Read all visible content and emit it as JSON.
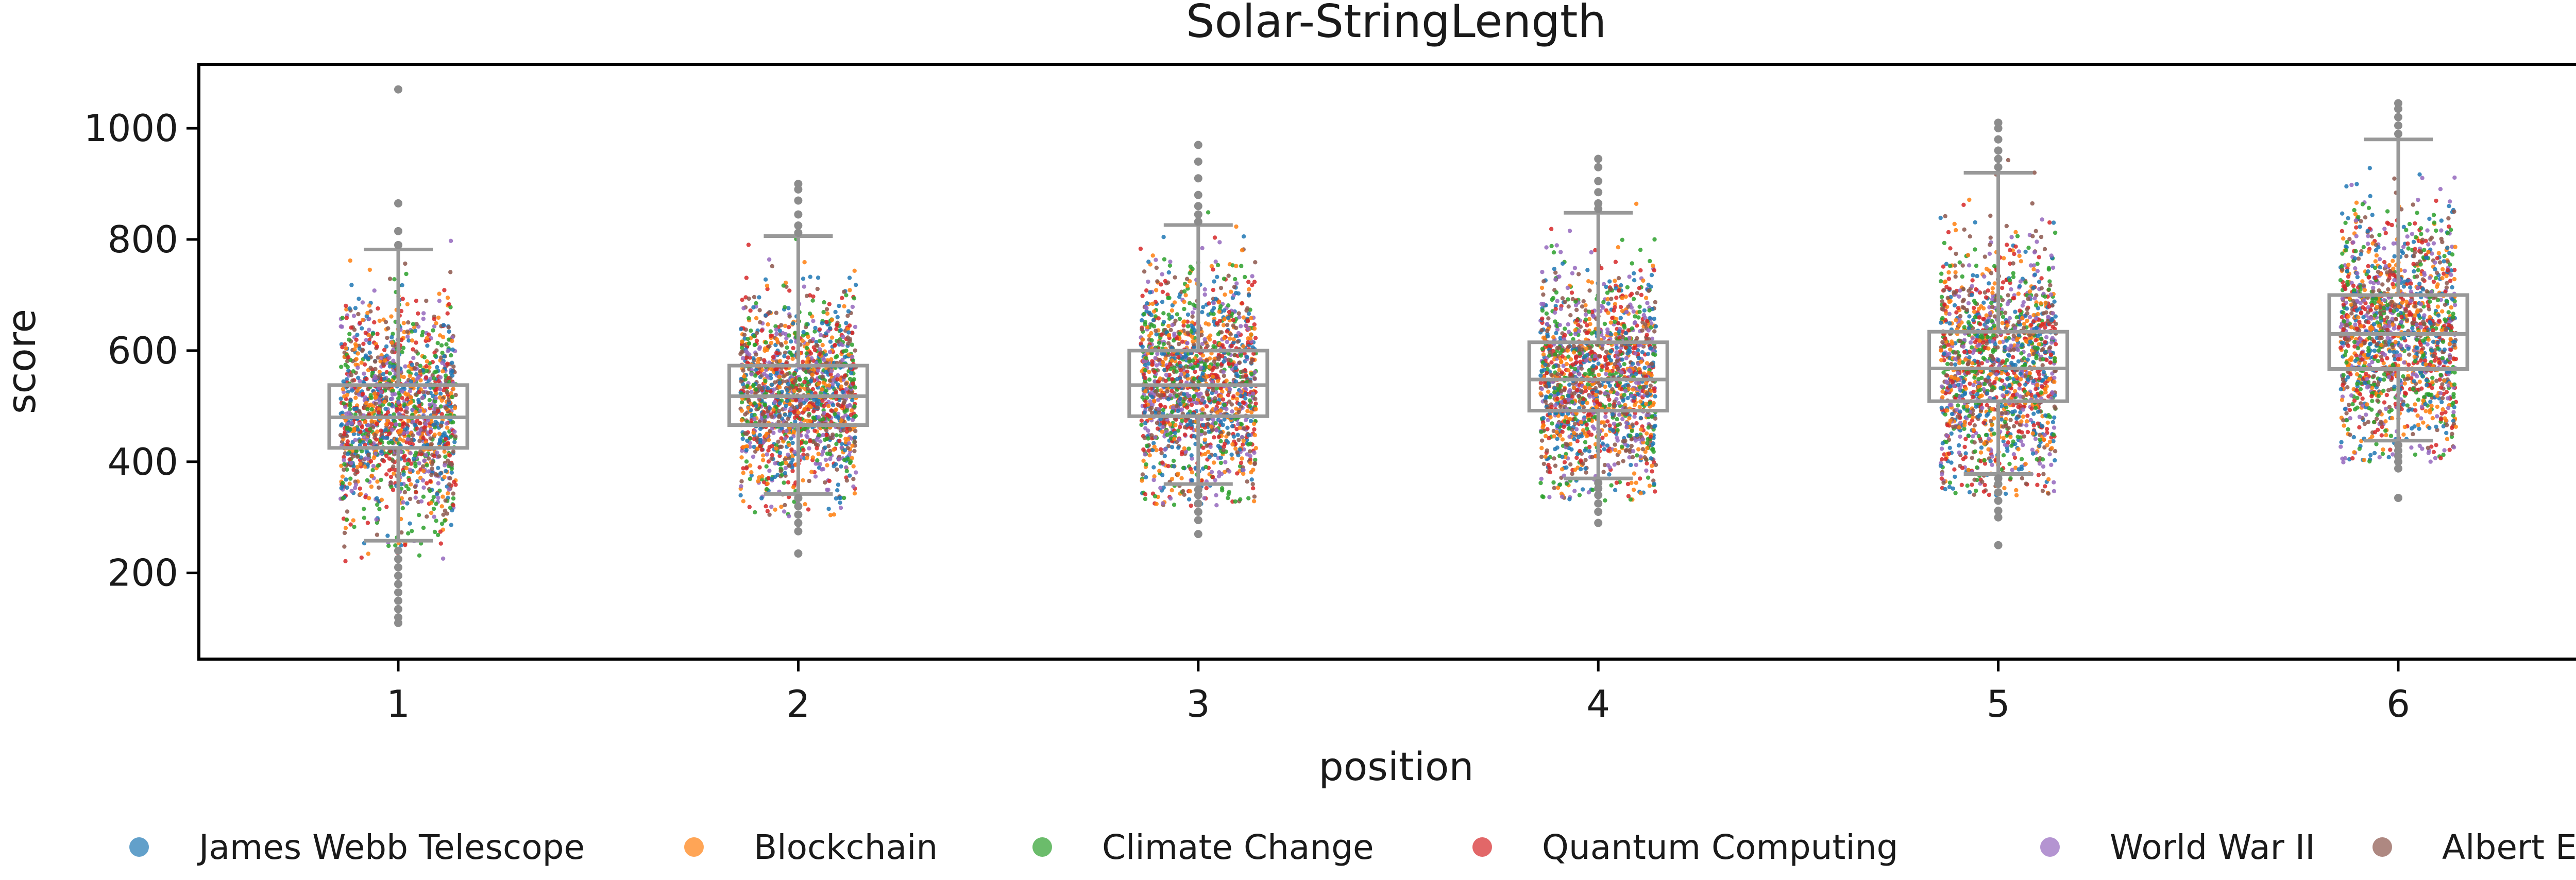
{
  "chart_data": {
    "type": "box",
    "title": "Solar-StringLength",
    "xlabel": "position",
    "ylabel": "score",
    "categories": [
      "1",
      "2",
      "3",
      "4",
      "5",
      "6"
    ],
    "ylim": [
      45,
      1115
    ],
    "yticks": [
      200,
      400,
      600,
      800,
      1000
    ],
    "grid": false,
    "legend_position": "bottom",
    "box_color": "#999999",
    "boxes": [
      {
        "category": "1",
        "whisker_low": 258,
        "q1": 425,
        "median": 480,
        "q3": 538,
        "whisker_high": 782,
        "outliers": [
          240,
          225,
          210,
          195,
          180,
          165,
          150,
          135,
          120,
          110,
          790,
          815,
          865,
          1070
        ]
      },
      {
        "category": "2",
        "whisker_low": 342,
        "q1": 466,
        "median": 518,
        "q3": 573,
        "whisker_high": 806,
        "outliers": [
          335,
          320,
          305,
          290,
          275,
          235,
          812,
          825,
          845,
          870,
          890,
          900
        ]
      },
      {
        "category": "3",
        "whisker_low": 360,
        "q1": 482,
        "median": 538,
        "q3": 600,
        "whisker_high": 826,
        "outliers": [
          350,
          340,
          325,
          310,
          295,
          270,
          832,
          845,
          860,
          880,
          910,
          940,
          970
        ]
      },
      {
        "category": "4",
        "whisker_low": 370,
        "q1": 492,
        "median": 548,
        "q3": 615,
        "whisker_high": 848,
        "outliers": [
          362,
          352,
          340,
          325,
          310,
          290,
          855,
          865,
          885,
          905,
          930,
          945
        ]
      },
      {
        "category": "5",
        "whisker_low": 378,
        "q1": 509,
        "median": 568,
        "q3": 634,
        "whisker_high": 920,
        "outliers": [
          370,
          360,
          345,
          330,
          312,
          300,
          250,
          930,
          945,
          960,
          980,
          1000,
          1010
        ]
      },
      {
        "category": "6",
        "whisker_low": 438,
        "q1": 567,
        "median": 630,
        "q3": 700,
        "whisker_high": 980,
        "outliers": [
          430,
          420,
          410,
          400,
          388,
          335,
          990,
          1005,
          1020,
          1035,
          1045
        ]
      }
    ],
    "strip_spread": [
      {
        "category": "1",
        "center": 480,
        "sd": 95
      },
      {
        "category": "2",
        "center": 520,
        "sd": 85
      },
      {
        "category": "3",
        "center": 540,
        "sd": 95
      },
      {
        "category": "4",
        "center": 550,
        "sd": 95
      },
      {
        "category": "5",
        "center": 570,
        "sd": 105
      },
      {
        "category": "6",
        "center": 635,
        "sd": 105
      }
    ],
    "series": [
      {
        "name": "James Webb Telescope",
        "color": "#1f77b4"
      },
      {
        "name": "Blockchain",
        "color": "#ff7f0e"
      },
      {
        "name": "Climate Change",
        "color": "#2ca02c"
      },
      {
        "name": "Quantum Computing",
        "color": "#d62728"
      },
      {
        "name": "World War II",
        "color": "#9467bd"
      },
      {
        "name": "Albert Einstein",
        "color": "#8c564b"
      }
    ]
  }
}
